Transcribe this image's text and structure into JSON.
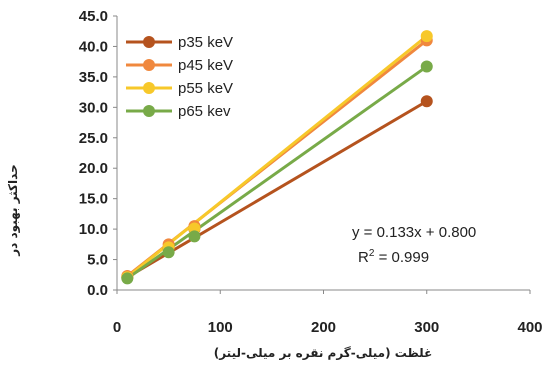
{
  "chart_data": {
    "type": "scatter",
    "x_ticks": [
      "0",
      "100",
      "200",
      "300",
      "400"
    ],
    "y_ticks": [
      "0.0",
      "5.0",
      "10.0",
      "15.0",
      "20.0",
      "25.0",
      "30.0",
      "35.0",
      "40.0",
      "45.0"
    ],
    "xlim": [
      0,
      400
    ],
    "ylim": [
      0,
      45
    ],
    "xlabel": "غلظت (میلی-گرم نقره بر میلی-لیتر)",
    "ylabel": "حداکثر بهبود در",
    "grid": false,
    "legend_position": "top-left",
    "series": [
      {
        "name": "p35 keV",
        "color": "#B5531E",
        "x": [
          10,
          50,
          75,
          300
        ],
        "y": [
          2.1,
          6.9,
          10.0,
          31.0
        ]
      },
      {
        "name": "p45 keV",
        "color": "#F0883E",
        "x": [
          10,
          50,
          75,
          300
        ],
        "y": [
          2.3,
          7.5,
          10.5,
          41.0
        ]
      },
      {
        "name": "p55 keV",
        "color": "#F7C82A",
        "x": [
          10,
          50,
          75,
          300
        ],
        "y": [
          2.1,
          7.0,
          10.1,
          41.7
        ]
      },
      {
        "name": "p65 kev",
        "color": "#78AA48",
        "x": [
          10,
          50,
          75,
          300
        ],
        "y": [
          1.9,
          6.2,
          8.8,
          36.7
        ]
      }
    ],
    "annotation": {
      "equation": "y = 0.133x + 0.800",
      "r2_prefix": "R",
      "r2_exp": "2",
      "r2_value": " = 0.999"
    }
  }
}
